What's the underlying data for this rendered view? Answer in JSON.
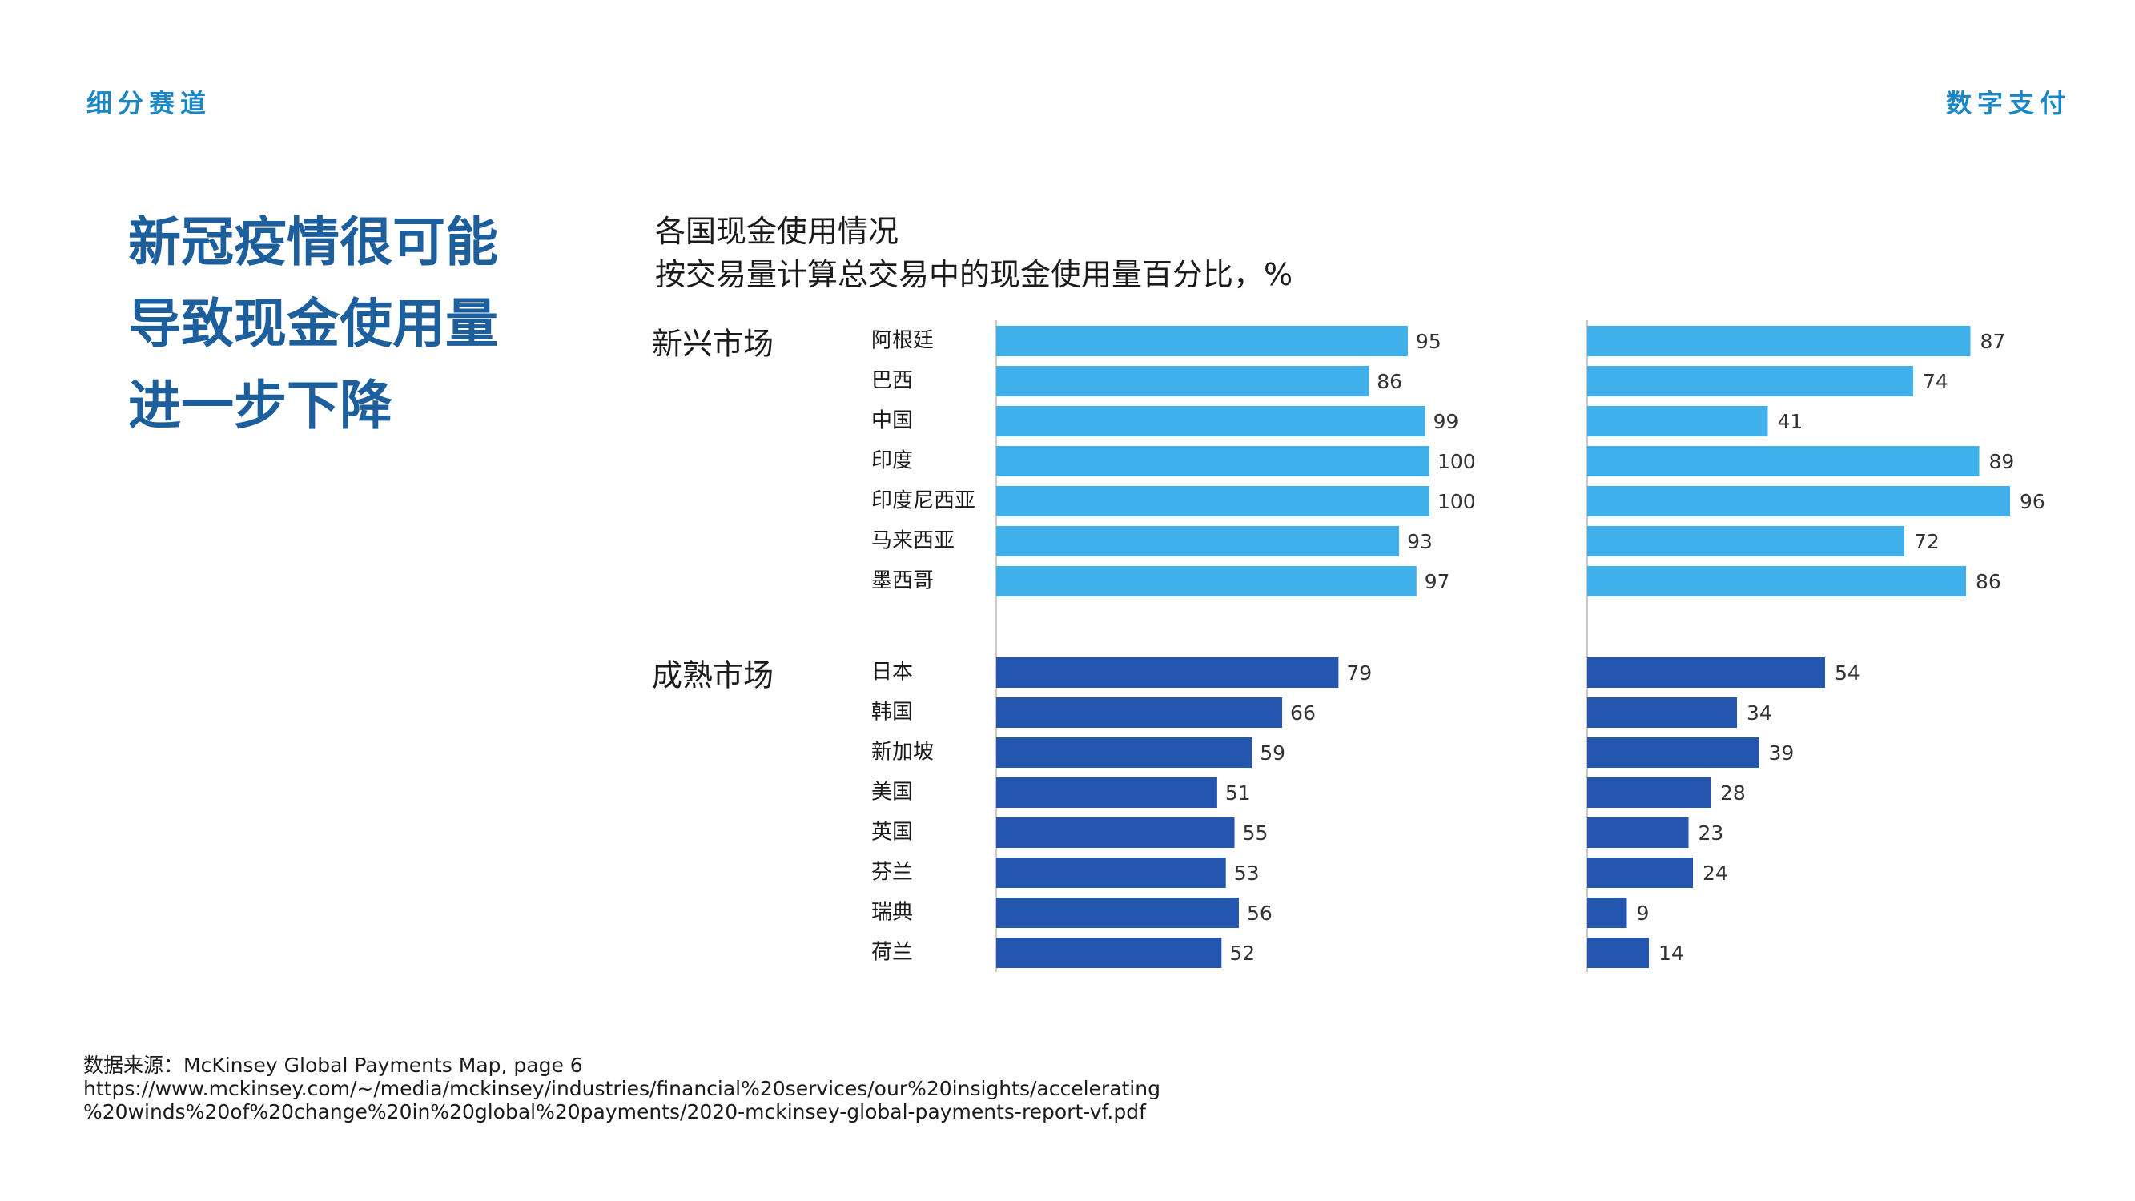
{
  "header": {
    "section": "细分赛道",
    "topic": "数字支付"
  },
  "headline": [
    "新冠疫情很可能",
    "导致现金使用量",
    "进一步下降"
  ],
  "chart_data": {
    "type": "bar",
    "orientation": "horizontal",
    "title": "各国现金使用情况",
    "subtitle": "按交易量计算总交易中的现金使用量百分比，%",
    "groups": [
      {
        "label": "新兴市场",
        "color": "#3fb0ea",
        "categories": [
          "阿根廷",
          "巴西",
          "中国",
          "印度",
          "印度尼西亚",
          "马来西亚",
          "墨西哥"
        ],
        "left_values": [
          95,
          86,
          99,
          100,
          100,
          93,
          97
        ],
        "right_values": [
          87,
          74,
          41,
          89,
          96,
          72,
          86
        ]
      },
      {
        "label": "成熟市场",
        "color": "#2456b0",
        "categories": [
          "日本",
          "韩国",
          "新加坡",
          "美国",
          "英国",
          "芬兰",
          "瑞典",
          "荷兰"
        ],
        "left_values": [
          79,
          66,
          59,
          51,
          55,
          53,
          56,
          52
        ],
        "right_values": [
          54,
          34,
          39,
          28,
          23,
          24,
          9,
          14
        ]
      }
    ],
    "xlim": [
      0,
      100
    ],
    "grid": false,
    "legend": "none"
  },
  "footer": {
    "source": "数据来源：McKinsey Global Payments Map, page 6",
    "url_line1": "https://www.mckinsey.com/~/media/mckinsey/industries/financial%20services/our%20insights/accelerating",
    "url_line2": "%20winds%20of%20change%20in%20global%20payments/2020-mckinsey-global-payments-report-vf.pdf"
  }
}
